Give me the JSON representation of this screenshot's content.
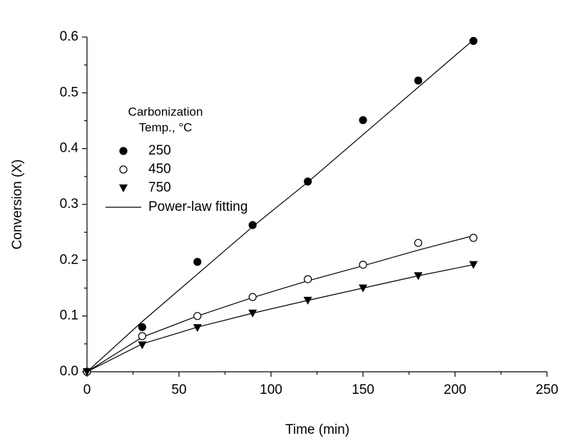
{
  "chart_data": {
    "type": "scatter",
    "x_label": "Time (min)",
    "y_label": "Conversion (X)",
    "x": [
      0,
      30,
      60,
      90,
      120,
      150,
      180,
      210
    ],
    "legend_title": [
      "Carbonization",
      "Temp., °C"
    ],
    "series": [
      {
        "name": "250",
        "color": "#000000",
        "marker": "filled-circle",
        "values": [
          0,
          0.08,
          0.197,
          0.263,
          0.341,
          0.451,
          0.522,
          0.593
        ]
      },
      {
        "name": "450",
        "color": "#000000",
        "marker": "open-circle",
        "values": [
          0,
          0.064,
          0.1,
          0.134,
          0.166,
          0.192,
          0.231,
          0.24
        ]
      },
      {
        "name": "750",
        "color": "#000000",
        "marker": "triangle-down",
        "values": [
          0,
          0.048,
          0.079,
          0.105,
          0.128,
          0.15,
          0.172,
          0.192
        ]
      }
    ],
    "fit": {
      "name": "Power-law fitting",
      "color": "#000000",
      "lines": [
        [
          0,
          0.09,
          0.175,
          0.26,
          0.34,
          0.425,
          0.51,
          0.595
        ],
        [
          0,
          0.062,
          0.1,
          0.133,
          0.163,
          0.19,
          0.218,
          0.244
        ],
        [
          0,
          0.05,
          0.08,
          0.105,
          0.128,
          0.15,
          0.172,
          0.192
        ]
      ]
    },
    "xlim": [
      0,
      250
    ],
    "xticks": [
      0,
      50,
      100,
      150,
      200,
      250
    ],
    "xminorticks": [
      25,
      75,
      125,
      175,
      225
    ],
    "ylim": [
      0,
      0.6
    ],
    "yticks": [
      {
        "value": 0,
        "label": "0.0"
      },
      0.1,
      0.2,
      0.3,
      0.4,
      0.5,
      0.6
    ],
    "yminorticks": [
      0.05,
      0.15,
      0.25,
      0.35,
      0.45,
      0.55
    ],
    "grid": false
  }
}
